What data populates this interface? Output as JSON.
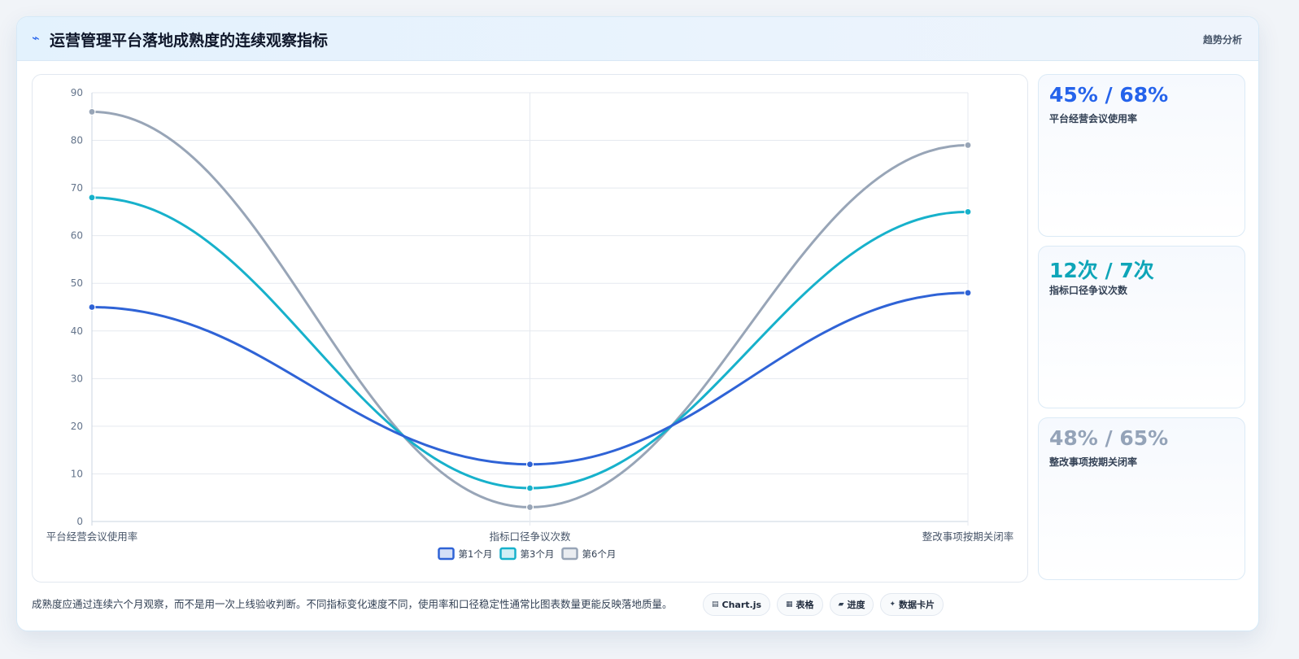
{
  "header": {
    "icon": "lightning-icon",
    "title": "运营管理平台落地成熟度的连续观察指标",
    "tag": "趋势分析"
  },
  "colors": {
    "blue": "#2f63d6",
    "cyan": "#17b1cb",
    "gray": "#98a5b7"
  },
  "chart_data": {
    "type": "line",
    "categories": [
      "平台经营会议使用率",
      "指标口径争议次数",
      "整改事项按期关闭率"
    ],
    "series": [
      {
        "name": "第1个月",
        "values": [
          45,
          12,
          48
        ],
        "color": "#2f63d6"
      },
      {
        "name": "第3个月",
        "values": [
          68,
          7,
          65
        ],
        "color": "#17b1cb"
      },
      {
        "name": "第6个月",
        "values": [
          86,
          3,
          79
        ],
        "color": "#98a5b7"
      }
    ],
    "ylim": [
      0,
      90
    ],
    "yticks": [
      "0",
      "10",
      "20",
      "30",
      "40",
      "50",
      "60",
      "70",
      "80",
      "90"
    ],
    "grid": true,
    "legend": "bottom",
    "smooth": true
  },
  "stats": [
    {
      "value": "45% / 68%",
      "label": "平台经营会议使用率",
      "color": "#2563eb"
    },
    {
      "value": "12次 / 7次",
      "label": "指标口径争议次数",
      "color": "#0ea5b8"
    },
    {
      "value": "48% / 65%",
      "label": "整改事项按期关闭率",
      "color": "#94a3b8"
    }
  ],
  "footer": {
    "note": "成熟度应通过连续六个月观察，而不是用一次上线验收判断。不同指标变化速度不同，使用率和口径稳定性通常比图表数量更能反映落地质量。",
    "chips": [
      {
        "icon": "monitor-icon",
        "glyph": "▤",
        "label": "Chart.js"
      },
      {
        "icon": "table-icon",
        "glyph": "▦",
        "label": "表格"
      },
      {
        "icon": "progress-icon",
        "glyph": "▰",
        "label": "进度"
      },
      {
        "icon": "card-icon",
        "glyph": "✦",
        "label": "数据卡片"
      }
    ]
  }
}
